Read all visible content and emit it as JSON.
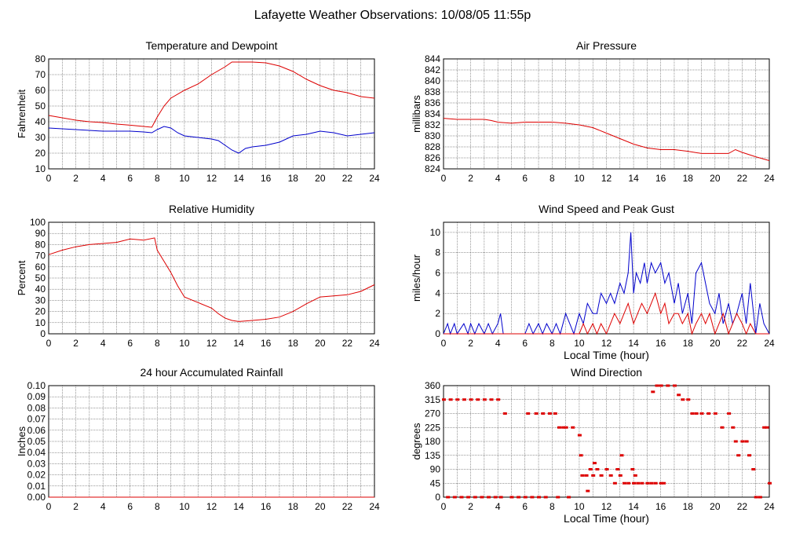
{
  "page_title": "Lafayette Weather Observations: 10/08/05 11:55p",
  "colors": {
    "red": "#dd0000",
    "blue": "#0000cc",
    "grid": "#000000",
    "bg": "#ffffff"
  },
  "chart_data": [
    {
      "id": "temp",
      "type": "line",
      "title": "Temperature and Dewpoint",
      "xlabel": "",
      "ylabel": "Fahrenheit",
      "xlim": [
        0,
        24
      ],
      "ylim": [
        10,
        80
      ],
      "xticks": [
        0,
        2,
        4,
        6,
        8,
        10,
        12,
        14,
        16,
        18,
        20,
        22,
        24
      ],
      "yticks": [
        10,
        20,
        30,
        40,
        50,
        60,
        70,
        80
      ],
      "series": [
        {
          "color": "#dd0000",
          "x": [
            0,
            1,
            2,
            3,
            4,
            5,
            6,
            7,
            7.6,
            8,
            8.5,
            9,
            10,
            11,
            12,
            13,
            13.5,
            14,
            15,
            16,
            17,
            18,
            19,
            20,
            21,
            22,
            23,
            24
          ],
          "values": [
            44,
            42.5,
            41,
            40,
            39.5,
            38.5,
            37.8,
            37,
            36.5,
            43,
            50,
            55,
            60,
            64,
            70,
            75,
            78,
            78,
            78,
            77.5,
            75.5,
            72,
            67,
            63,
            60,
            58.5,
            56,
            55
          ]
        },
        {
          "color": "#0000cc",
          "x": [
            0,
            1,
            2,
            3,
            4,
            5,
            6,
            7,
            7.6,
            8,
            8.5,
            9,
            9.5,
            10,
            11,
            12,
            12.5,
            13,
            13.5,
            14,
            14.5,
            15,
            16,
            17,
            18,
            19,
            20,
            21,
            22,
            23,
            24
          ],
          "values": [
            36,
            35.5,
            35,
            34.5,
            34,
            34,
            34,
            33.5,
            33,
            35,
            37,
            36,
            33,
            31,
            30,
            29,
            28,
            25,
            22,
            20,
            23,
            24,
            25,
            27,
            31,
            32,
            34,
            33,
            31,
            32,
            33
          ]
        }
      ]
    },
    {
      "id": "pressure",
      "type": "line",
      "title": "Air Pressure",
      "xlabel": "",
      "ylabel": "millibars",
      "xlim": [
        0,
        24
      ],
      "ylim": [
        824,
        844
      ],
      "xticks": [
        0,
        2,
        4,
        6,
        8,
        10,
        12,
        14,
        16,
        18,
        20,
        22,
        24
      ],
      "yticks": [
        824,
        826,
        828,
        830,
        832,
        834,
        836,
        838,
        840,
        842,
        844
      ],
      "series": [
        {
          "color": "#dd0000",
          "x": [
            0,
            1,
            2,
            3,
            3.5,
            4,
            5,
            6,
            7,
            8,
            9,
            10,
            11,
            12,
            13,
            14,
            15,
            16,
            17,
            18,
            19,
            20,
            21,
            21.5,
            22,
            23,
            24
          ],
          "values": [
            833.2,
            833,
            833,
            833,
            832.8,
            832.5,
            832.3,
            832.5,
            832.5,
            832.5,
            832.3,
            832,
            831.5,
            830.5,
            829.5,
            828.5,
            827.8,
            827.5,
            827.5,
            827.2,
            826.8,
            826.8,
            826.8,
            827.5,
            827,
            826.2,
            825.5
          ]
        }
      ]
    },
    {
      "id": "humidity",
      "type": "line",
      "title": "Relative Humidity",
      "xlabel": "",
      "ylabel": "Percent",
      "xlim": [
        0,
        24
      ],
      "ylim": [
        0,
        100
      ],
      "xticks": [
        0,
        2,
        4,
        6,
        8,
        10,
        12,
        14,
        16,
        18,
        20,
        22,
        24
      ],
      "yticks": [
        0,
        10,
        20,
        30,
        40,
        50,
        60,
        70,
        80,
        90,
        100
      ],
      "series": [
        {
          "color": "#dd0000",
          "x": [
            0,
            1,
            2,
            3,
            4,
            5,
            6,
            7,
            7.8,
            8,
            8.5,
            9,
            9.5,
            10,
            11,
            12,
            12.5,
            13,
            13.5,
            14,
            15,
            16,
            17,
            18,
            19,
            20,
            21,
            22,
            23,
            24
          ],
          "values": [
            71,
            75,
            78,
            80,
            81,
            82,
            85,
            84,
            86,
            75,
            65,
            55,
            43,
            33,
            28,
            23,
            18,
            14,
            12,
            11,
            12,
            13,
            15,
            20,
            27,
            33,
            34,
            35,
            38,
            44
          ]
        }
      ]
    },
    {
      "id": "wind",
      "type": "line",
      "title": "Wind Speed and Peak Gust",
      "xlabel": "Local Time (hour)",
      "ylabel": "miles/hour",
      "xlim": [
        0,
        24
      ],
      "ylim": [
        0,
        11
      ],
      "xticks": [
        0,
        2,
        4,
        6,
        8,
        10,
        12,
        14,
        16,
        18,
        20,
        22,
        24
      ],
      "yticks": [
        0,
        2,
        4,
        6,
        8,
        10
      ],
      "series": [
        {
          "color": "#0000cc",
          "x": [
            0,
            0.3,
            0.5,
            0.8,
            1,
            1.5,
            1.8,
            2,
            2.3,
            2.6,
            3,
            3.3,
            3.6,
            4,
            4.2,
            4.4,
            4.6,
            5,
            6,
            6.3,
            6.6,
            7,
            7.3,
            7.6,
            8,
            8.3,
            8.6,
            9,
            9.3,
            9.6,
            10,
            10.3,
            10.6,
            11,
            11.3,
            11.6,
            12,
            12.3,
            12.6,
            13,
            13.3,
            13.6,
            13.8,
            14,
            14.2,
            14.5,
            14.8,
            15,
            15.3,
            15.6,
            16,
            16.3,
            16.6,
            17,
            17.3,
            17.6,
            18,
            18.3,
            18.6,
            19,
            19.3,
            19.6,
            20,
            20.3,
            20.6,
            21,
            21.3,
            21.6,
            22,
            22.3,
            22.6,
            23,
            23.3,
            23.6,
            24
          ],
          "values": [
            0,
            1,
            0,
            1,
            0,
            1,
            0,
            1,
            0,
            1,
            0,
            1,
            0,
            1,
            2,
            0,
            0,
            0,
            0,
            1,
            0,
            1,
            0,
            1,
            0,
            1,
            0,
            2,
            1,
            0,
            2,
            1,
            3,
            2,
            2,
            4,
            3,
            4,
            3,
            5,
            4,
            6,
            10,
            4,
            6,
            5,
            7,
            5,
            7,
            6,
            7,
            5,
            6,
            3,
            5,
            2,
            4,
            1,
            6,
            7,
            5,
            3,
            2,
            4,
            1,
            3,
            1,
            2,
            4,
            1,
            5,
            0,
            3,
            1,
            0
          ]
        },
        {
          "color": "#dd0000",
          "x": [
            0,
            10,
            10.3,
            10.6,
            11,
            11.3,
            11.6,
            12,
            12.3,
            12.6,
            13,
            13.3,
            13.6,
            14,
            14.3,
            14.6,
            15,
            15.3,
            15.6,
            16,
            16.3,
            16.6,
            17,
            17.3,
            17.6,
            18,
            18.3,
            18.6,
            19,
            19.3,
            19.6,
            20,
            20.3,
            20.6,
            21,
            21.3,
            21.6,
            22,
            22.3,
            22.6,
            23,
            23.5,
            24
          ],
          "values": [
            0,
            0,
            1,
            0,
            1,
            0,
            1,
            0,
            1,
            2,
            1,
            2,
            3,
            1,
            2,
            3,
            2,
            3,
            4,
            2,
            3,
            1,
            2,
            2,
            1,
            2,
            0,
            1,
            2,
            1,
            2,
            0,
            1,
            2,
            0,
            1,
            2,
            1,
            0,
            1,
            0,
            0,
            0
          ]
        }
      ]
    },
    {
      "id": "rain",
      "type": "line",
      "title": "24 hour Accumulated Rainfall",
      "xlabel": "",
      "ylabel": "Inches",
      "xlim": [
        0,
        24
      ],
      "ylim": [
        0,
        0.1
      ],
      "xticks": [
        0,
        2,
        4,
        6,
        8,
        10,
        12,
        14,
        16,
        18,
        20,
        22,
        24
      ],
      "yticks": [
        "0.00",
        "0.01",
        "0.02",
        "0.03",
        "0.04",
        "0.05",
        "0.06",
        "0.07",
        "0.08",
        "0.09",
        "0.10"
      ],
      "series": [
        {
          "color": "#dd0000",
          "x": [
            0,
            24
          ],
          "values": [
            0,
            0
          ]
        }
      ]
    },
    {
      "id": "direction",
      "type": "scatter",
      "title": "Wind Direction",
      "xlabel": "Local Time (hour)",
      "ylabel": "degrees",
      "xlim": [
        0,
        24
      ],
      "ylim": [
        0,
        360
      ],
      "xticks": [
        0,
        2,
        4,
        6,
        8,
        10,
        12,
        14,
        16,
        18,
        20,
        22,
        24
      ],
      "yticks": [
        0,
        45,
        90,
        135,
        180,
        225,
        270,
        315,
        360
      ],
      "series": [
        {
          "color": "#dd0000",
          "x": [
            0,
            0.5,
            1,
            1.5,
            2,
            2.5,
            3,
            3.5,
            4,
            0.3,
            0.8,
            1.3,
            1.8,
            2.3,
            2.8,
            3.3,
            3.8,
            4.2,
            4.5,
            5,
            5.5,
            6,
            6.5,
            7,
            7.5,
            6.2,
            6.8,
            7.3,
            7.8,
            8.2,
            8.5,
            8.8,
            9,
            9.5,
            10,
            10.1,
            10.2,
            10.5,
            10.8,
            11,
            11.3,
            11.6,
            12,
            12.3,
            12.6,
            13,
            13.3,
            13.6,
            13.9,
            14,
            14.3,
            14.6,
            15,
            15.3,
            15.6,
            16,
            16.2,
            15.4,
            15.7,
            16,
            16.5,
            17,
            17.3,
            17.6,
            18,
            18.3,
            18.6,
            19,
            19.5,
            20,
            20.5,
            21,
            21.3,
            21.5,
            21.7,
            22,
            22.3,
            22.5,
            22.8,
            23,
            23.3,
            23.6,
            23.8,
            24,
            8.4,
            9.2,
            10.6,
            11.1,
            12.8,
            13.1,
            14.1
          ],
          "values": [
            315,
            315,
            315,
            315,
            315,
            315,
            315,
            315,
            315,
            0,
            0,
            0,
            0,
            0,
            0,
            0,
            0,
            0,
            270,
            0,
            0,
            0,
            0,
            0,
            0,
            270,
            270,
            270,
            270,
            270,
            225,
            225,
            225,
            225,
            200,
            135,
            70,
            70,
            90,
            70,
            90,
            70,
            90,
            70,
            45,
            70,
            45,
            45,
            90,
            45,
            45,
            45,
            45,
            45,
            45,
            45,
            45,
            340,
            360,
            360,
            360,
            360,
            330,
            315,
            315,
            270,
            270,
            270,
            270,
            270,
            225,
            270,
            225,
            180,
            135,
            180,
            180,
            135,
            90,
            0,
            0,
            225,
            225,
            45,
            0,
            0,
            20,
            110,
            90,
            135,
            70
          ]
        }
      ]
    }
  ]
}
